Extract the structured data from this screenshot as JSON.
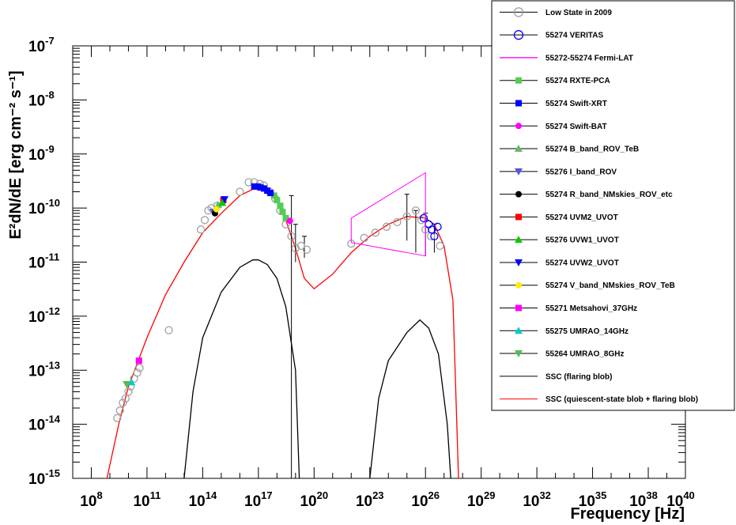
{
  "chart_data": {
    "type": "scatter",
    "xlabel": "Frequency [Hz]",
    "ylabel": "E²dN/dE [erg cm⁻² s⁻¹]",
    "x_scale": "log",
    "y_scale": "log",
    "xlim": [
      10000000.0,
      1e+40
    ],
    "ylim": [
      1e-15,
      1e-07
    ],
    "x_ticks": [
      {
        "v": 100000000.0,
        "m": "10",
        "e": "8"
      },
      {
        "v": 100000000000.0,
        "m": "10",
        "e": "11"
      },
      {
        "v": 100000000000000.0,
        "m": "10",
        "e": "14"
      },
      {
        "v": 1e+17,
        "m": "10",
        "e": "17"
      },
      {
        "v": 1e+20,
        "m": "10",
        "e": "20"
      },
      {
        "v": 1e+23,
        "m": "10",
        "e": "23"
      },
      {
        "v": 1e+26,
        "m": "10",
        "e": "26"
      },
      {
        "v": 1e+29,
        "m": "10",
        "e": "29"
      },
      {
        "v": 1e+32,
        "m": "10",
        "e": "32"
      },
      {
        "v": 1e+35,
        "m": "10",
        "e": "35"
      },
      {
        "v": 1e+38,
        "m": "10",
        "e": "38"
      },
      {
        "v": 1e+40,
        "m": "10",
        "e": "40"
      }
    ],
    "y_ticks": [
      {
        "v": 1e-15,
        "m": "10",
        "e": "-15"
      },
      {
        "v": 1e-14,
        "m": "10",
        "e": "-14"
      },
      {
        "v": 1e-13,
        "m": "10",
        "e": "-13"
      },
      {
        "v": 1e-12,
        "m": "10",
        "e": "-12"
      },
      {
        "v": 1e-11,
        "m": "10",
        "e": "-11"
      },
      {
        "v": 1e-10,
        "m": "10",
        "e": "-10"
      },
      {
        "v": 1e-09,
        "m": "10",
        "e": "-9"
      },
      {
        "v": 1e-08,
        "m": "10",
        "e": "-8"
      },
      {
        "v": 1e-07,
        "m": "10",
        "e": "-7"
      }
    ],
    "grid": false,
    "legend_position": "top-right",
    "series": [
      {
        "name": "Low State in 2009",
        "marker": "open-circle",
        "color": "#a0a0a0",
        "points": [
          [
            2500000000.0,
            1.3e-14
          ],
          [
            3500000000.0,
            1.8e-14
          ],
          [
            5000000000.0,
            2.5e-14
          ],
          [
            7000000000.0,
            3e-14
          ],
          [
            10000000000.0,
            4e-14
          ],
          [
            13000000000.0,
            5e-14
          ],
          [
            20000000000.0,
            7e-14
          ],
          [
            30000000000.0,
            9e-14
          ],
          [
            40000000000.0,
            1.1e-13
          ],
          [
            1500000000000.0,
            5.5e-13
          ],
          [
            80000000000000.0,
            4e-11
          ],
          [
            130000000000000.0,
            6e-11
          ],
          [
            200000000000000.0,
            9e-11
          ],
          [
            300000000000000.0,
            1e-10
          ],
          [
            600000000000000.0,
            1.1e-10
          ],
          [
            1e+16,
            2e-10
          ],
          [
            3e+16,
            3e-10
          ],
          [
            6e+16,
            3e-10
          ],
          [
            1.2e+17,
            2.8e-10
          ],
          [
            2e+17,
            2.6e-10
          ],
          [
            4e+17,
            2e-10
          ],
          [
            8e+17,
            1.5e-10
          ],
          [
            1.5e+18,
            9e-11
          ],
          [
            3e+18,
            5e-11
          ],
          [
            6e+18,
            3e-11
          ],
          [
            1e+19,
            1.8e-11
          ],
          [
            2e+19,
            2e-11
          ],
          [
            4e+19,
            1.7e-11
          ],
          [
            1e+22,
            2.2e-11
          ],
          [
            5e+22,
            2.8e-11
          ],
          [
            2e+23,
            3.5e-11
          ],
          [
            8e+23,
            4.5e-11
          ],
          [
            3e+24,
            5.5e-11
          ],
          [
            1e+25,
            7e-11
          ],
          [
            3e+25,
            9e-11
          ],
          [
            6e+25,
            6e-11
          ],
          [
            1e+26,
            4e-11
          ],
          [
            2e+26,
            3e-11
          ],
          [
            6e+26,
            2e-11
          ]
        ]
      },
      {
        "name": "55274 VERITAS",
        "marker": "open-circle",
        "color": "#0000ff",
        "points": [
          [
            8e+25,
            6.5e-11
          ],
          [
            1.5e+26,
            5e-11
          ],
          [
            2.2e+26,
            4e-11
          ],
          [
            3e+26,
            3e-11
          ],
          [
            4.5e+26,
            4.5e-11
          ]
        ]
      },
      {
        "name": "55272-55274 Fermi-LAT",
        "marker": "bowtie",
        "color": "#ff00ff",
        "x_range": [
          1e+22,
          1e+26
        ],
        "upper": [
          6.5e-11,
          4.5e-10
        ],
        "lower": [
          2.3e-11,
          1.3e-11
        ]
      },
      {
        "name": "55274 RXTE-PCA",
        "marker": "square",
        "color": "#55cc55",
        "points": [
          [
            7e+17,
            1.7e-10
          ],
          [
            1e+18,
            1.4e-10
          ],
          [
            1.5e+18,
            1.1e-10
          ],
          [
            2e+18,
            8.5e-11
          ],
          [
            3e+18,
            6.5e-11
          ]
        ]
      },
      {
        "name": "55274 Swift-XRT",
        "marker": "square",
        "color": "#0000ff",
        "points": [
          [
            6e+16,
            2.5e-10
          ],
          [
            9e+16,
            2.5e-10
          ],
          [
            1.3e+17,
            2.4e-10
          ],
          [
            2e+17,
            2.3e-10
          ],
          [
            3e+17,
            2.1e-10
          ],
          [
            4.5e+17,
            1.9e-10
          ]
        ]
      },
      {
        "name": "55274 Swift-BAT",
        "marker": "filled-circle",
        "color": "#ff00ff",
        "points": [
          [
            5e+18,
            5.8e-11
          ]
        ]
      },
      {
        "name": "55274 B_band_ROV_TeB",
        "marker": "triangle-up",
        "color": "#66bb66",
        "points": [
          [
            680000000000000.0,
            1.15e-10
          ]
        ]
      },
      {
        "name": "55276 I_band_ROV",
        "marker": "triangle-down",
        "color": "#5555dd",
        "points": [
          [
            370000000000000.0,
            8.5e-11
          ]
        ]
      },
      {
        "name": "55274 R_band_NMskies_ROV_etc",
        "marker": "filled-circle",
        "color": "#000000",
        "points": [
          [
            460000000000000.0,
            8e-11
          ]
        ]
      },
      {
        "name": "55274 UVM2_UVOT",
        "marker": "square",
        "color": "#ff0000",
        "points": [
          [
            1300000000000000.0,
            1.4e-10
          ]
        ]
      },
      {
        "name": "55276 UVW1_UVOT",
        "marker": "triangle-up",
        "color": "#00cc00",
        "points": [
          [
            1150000000000000.0,
            1.25e-10
          ]
        ]
      },
      {
        "name": "55274 UVW2_UVOT",
        "marker": "triangle-down",
        "color": "#0000ff",
        "points": [
          [
            1500000000000000.0,
            1.45e-10
          ]
        ]
      },
      {
        "name": "55274 V_band_NMskies_ROV_TeB",
        "marker": "filled-circle",
        "color": "#ffee00",
        "points": [
          [
            550000000000000.0,
            9.5e-11
          ]
        ]
      },
      {
        "name": "55271 Metsahovi_37GHz",
        "marker": "square",
        "color": "#ff00ff",
        "points": [
          [
            37000000000.0,
            1.5e-13
          ]
        ]
      },
      {
        "name": "55275 UMRAO_14GHz",
        "marker": "triangle-up",
        "color": "#00cccc",
        "points": [
          [
            14500000000.0,
            6e-14
          ]
        ]
      },
      {
        "name": "55264 UMRAO_8GHz",
        "marker": "triangle-down",
        "color": "#55bb55",
        "points": [
          [
            8000000000.0,
            5.5e-14
          ]
        ]
      },
      {
        "name": "SSC (flaring blob)",
        "marker": "line",
        "color": "#000000",
        "points": [
          [
            10000000000000.0,
            1e-15
          ],
          [
            30000000000000.0,
            4e-14
          ],
          [
            100000000000000.0,
            4e-13
          ],
          [
            1000000000000000.0,
            2.8e-12
          ],
          [
            1e+16,
            8e-12
          ],
          [
            5e+16,
            1.1e-11
          ],
          [
            1e+17,
            1.1e-11
          ],
          [
            3e+17,
            9e-12
          ],
          [
            1e+18,
            5e-12
          ],
          [
            3e+18,
            1.5e-12
          ],
          [
            1e+19,
            1e-13
          ],
          [
            1.6e+19,
            1e-15
          ]
        ],
        "points_2": [
          [
            1e+23,
            1e-15
          ],
          [
            3e+23,
            3e-14
          ],
          [
            1e+24,
            1.5e-13
          ],
          [
            1e+25,
            5e-13
          ],
          [
            5e+25,
            8.5e-13
          ],
          [
            1.5e+26,
            6e-13
          ],
          [
            5e+26,
            2e-13
          ],
          [
            1.5e+27,
            1e-14
          ],
          [
            2.3e+27,
            1e-15
          ]
        ]
      },
      {
        "name": "SSC (quiescent-state blob + flaring blob)",
        "marker": "line",
        "color": "#ff0000",
        "points": [
          [
            700000000.0,
            1e-15
          ],
          [
            3000000000.0,
            1e-14
          ],
          [
            10000000000.0,
            5e-14
          ],
          [
            100000000000.0,
            4e-13
          ],
          [
            1000000000000.0,
            2.5e-12
          ],
          [
            10000000000000.0,
            1e-11
          ],
          [
            100000000000000.0,
            3.5e-11
          ],
          [
            1000000000000000.0,
            8e-11
          ],
          [
            1e+16,
            1.7e-10
          ],
          [
            1e+17,
            2.5e-10
          ],
          [
            1e+18,
            1.5e-10
          ],
          [
            3e+18,
            6e-11
          ],
          [
            1e+19,
            1.8e-11
          ],
          [
            3e+19,
            5e-12
          ],
          [
            1e+20,
            3.2e-12
          ],
          [
            1e+21,
            6e-12
          ],
          [
            1e+22,
            1.5e-11
          ],
          [
            1e+23,
            3e-11
          ],
          [
            1e+24,
            5e-11
          ],
          [
            1e+25,
            7e-11
          ],
          [
            1e+26,
            6.5e-11
          ],
          [
            3e+26,
            5e-11
          ],
          [
            1e+27,
            2e-11
          ],
          [
            3e+27,
            2e-12
          ],
          [
            6e+27,
            1e-15
          ]
        ]
      }
    ]
  }
}
